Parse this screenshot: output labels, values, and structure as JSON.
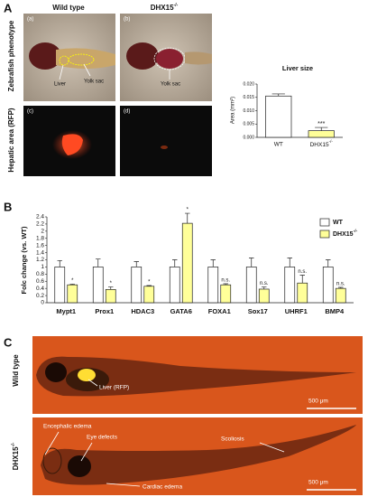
{
  "panels": {
    "a": {
      "letter": "A",
      "col1": "Wild type",
      "col2_base": "DHX15",
      "col2_sup": "-/-",
      "row1": "Zebrafish phenotype",
      "row2": "Hepatic area (RFP)",
      "img_a": "(a)",
      "img_b": "(b)",
      "img_c": "(c)",
      "img_d": "(d)",
      "liver": "Liver",
      "yolk1": "Yolk sac",
      "yolk2": "Yolk sac"
    },
    "b": {
      "letter": "B"
    },
    "c": {
      "letter": "C",
      "wt_label": "Wild type",
      "liver": "Liver (RFP)",
      "scale1": "500 μm",
      "mut_base": "DHX15",
      "mut_sup": "-/-",
      "encephalic": "Encephalic edema",
      "eye": "Eye defects",
      "scoliosis": "Scoliosis",
      "cardiac": "Cardiac edema",
      "scale2": "500 μm"
    }
  },
  "chart_data": [
    {
      "type": "bar",
      "title": "Liver size",
      "y_label": "Area (mm²)",
      "categories": [
        "WT",
        {
          "base": "DHX15",
          "sup": "-/-"
        }
      ],
      "values": [
        0.0155,
        0.0025
      ],
      "errors": [
        0.0008,
        0.0012
      ],
      "colors": [
        "#ffffff",
        "#ffff99"
      ],
      "annotations": [
        null,
        "***"
      ],
      "ylim": [
        0,
        0.02
      ],
      "yticks": [
        {
          "value": 0,
          "label": "0.000"
        },
        {
          "value": 0.005,
          "label": "0.005"
        },
        {
          "value": 0.01,
          "label": "0.010"
        },
        {
          "value": 0.015,
          "label": "0.015"
        },
        {
          "value": 0.02,
          "label": "0.020"
        }
      ]
    },
    {
      "type": "grouped-bar",
      "y_label": "Folc change (vs. WT)",
      "categories": [
        "Mypt1",
        "Prox1",
        "HDAC3",
        "GATA6",
        "FOXA1",
        "Sox17",
        "UHRF1",
        "BMP4"
      ],
      "series": [
        {
          "name": "WT",
          "color": "#ffffff",
          "values": [
            1,
            1,
            1,
            1,
            1,
            1,
            1,
            1
          ],
          "errors": [
            0.18,
            0.22,
            0.15,
            0.2,
            0.2,
            0.25,
            0.25,
            0.2
          ]
        },
        {
          "name": {
            "base": "DHX15",
            "sup": "-/-"
          },
          "color": "#ffff99",
          "values": [
            0.5,
            0.37,
            0.46,
            2.22,
            0.5,
            0.38,
            0.55,
            0.4
          ],
          "errors": [
            0.02,
            0.07,
            0.02,
            0.28,
            0.03,
            0.06,
            0.22,
            0.03
          ]
        }
      ],
      "annotations": [
        "*",
        "*",
        "*",
        "*",
        "n.s.",
        "n.s.",
        "n.s.",
        "n.s."
      ],
      "ylim": [
        0,
        2.4
      ],
      "yticks": [
        0,
        0.2,
        0.4,
        0.6,
        0.8,
        1,
        {
          "value": 1.2,
          "label": "1.2"
        },
        1.4,
        1.6,
        1.8,
        2,
        2.2,
        2.4
      ]
    }
  ]
}
